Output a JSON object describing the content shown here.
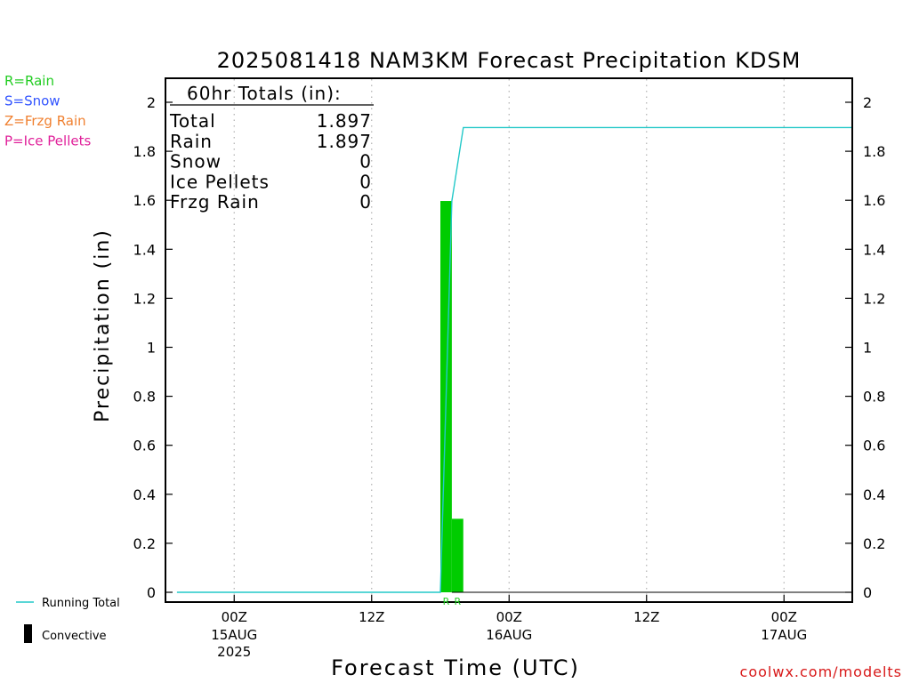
{
  "title": "2025081418 NAM3KM Forecast Precipitation KDSM",
  "ylabel": "Precipitation (in)",
  "xlabel": "Forecast Time (UTC)",
  "credit": "coolwx.com/modelts",
  "legend_types": [
    {
      "text": "R=Rain",
      "color": "#22cc22"
    },
    {
      "text": "S=Snow",
      "color": "#3355ff"
    },
    {
      "text": "Z=Frzg Rain",
      "color": "#f08030"
    },
    {
      "text": "P=Ice Pellets",
      "color": "#e0209a"
    }
  ],
  "legend_lines": {
    "running_total": "Running Total",
    "convective": "Convective",
    "running_total_color": "#22c8c8",
    "convective_color": "#000000"
  },
  "totals_box": {
    "header": "60hr Totals (in):",
    "rows": [
      {
        "label": "Total",
        "value": "1.897"
      },
      {
        "label": "Rain",
        "value": "1.897"
      },
      {
        "label": "Snow",
        "value": "0"
      },
      {
        "label": "Ice Pellets",
        "value": "0"
      },
      {
        "label": "Frzg Rain",
        "value": "0"
      }
    ]
  },
  "chart_data": {
    "type": "bar",
    "title": "2025081418 NAM3KM Forecast Precipitation KDSM",
    "xlabel": "Forecast Time (UTC)",
    "ylabel": "Precipitation (in)",
    "ylim": [
      0,
      2.1
    ],
    "xlim_hours_from_init": [
      0,
      60
    ],
    "yticks": [
      0,
      0.2,
      0.4,
      0.6,
      0.8,
      1,
      1.2,
      1.4,
      1.6,
      1.8,
      2
    ],
    "ytick_labels": [
      "0",
      "0.2",
      "0.4",
      "0.6",
      "0.8",
      "1",
      "1.2",
      "1.4",
      "1.6",
      "1.8",
      "2"
    ],
    "xticks": [
      {
        "hour": 6,
        "label": "00Z",
        "sub": "15AUG",
        "sub2": "2025"
      },
      {
        "hour": 18,
        "label": "12Z",
        "sub": "",
        "sub2": ""
      },
      {
        "hour": 30,
        "label": "00Z",
        "sub": "16AUG",
        "sub2": ""
      },
      {
        "hour": 42,
        "label": "12Z",
        "sub": "",
        "sub2": ""
      },
      {
        "hour": 54,
        "label": "00Z",
        "sub": "17AUG",
        "sub2": ""
      }
    ],
    "grid": "vertical dotted",
    "bars": [
      {
        "hour_start": 24,
        "hour_end": 25,
        "value": 1.597,
        "type": "R",
        "color": "#00cc00"
      },
      {
        "hour_start": 25,
        "hour_end": 26,
        "value": 0.3,
        "type": "R",
        "color": "#00cc00"
      }
    ],
    "series": [
      {
        "name": "Running Total",
        "color": "#22c8c8",
        "x": [
          1,
          23,
          24,
          25,
          26,
          27,
          60
        ],
        "y": [
          0,
          0,
          0,
          1.597,
          1.897,
          1.897,
          1.897
        ]
      }
    ]
  }
}
